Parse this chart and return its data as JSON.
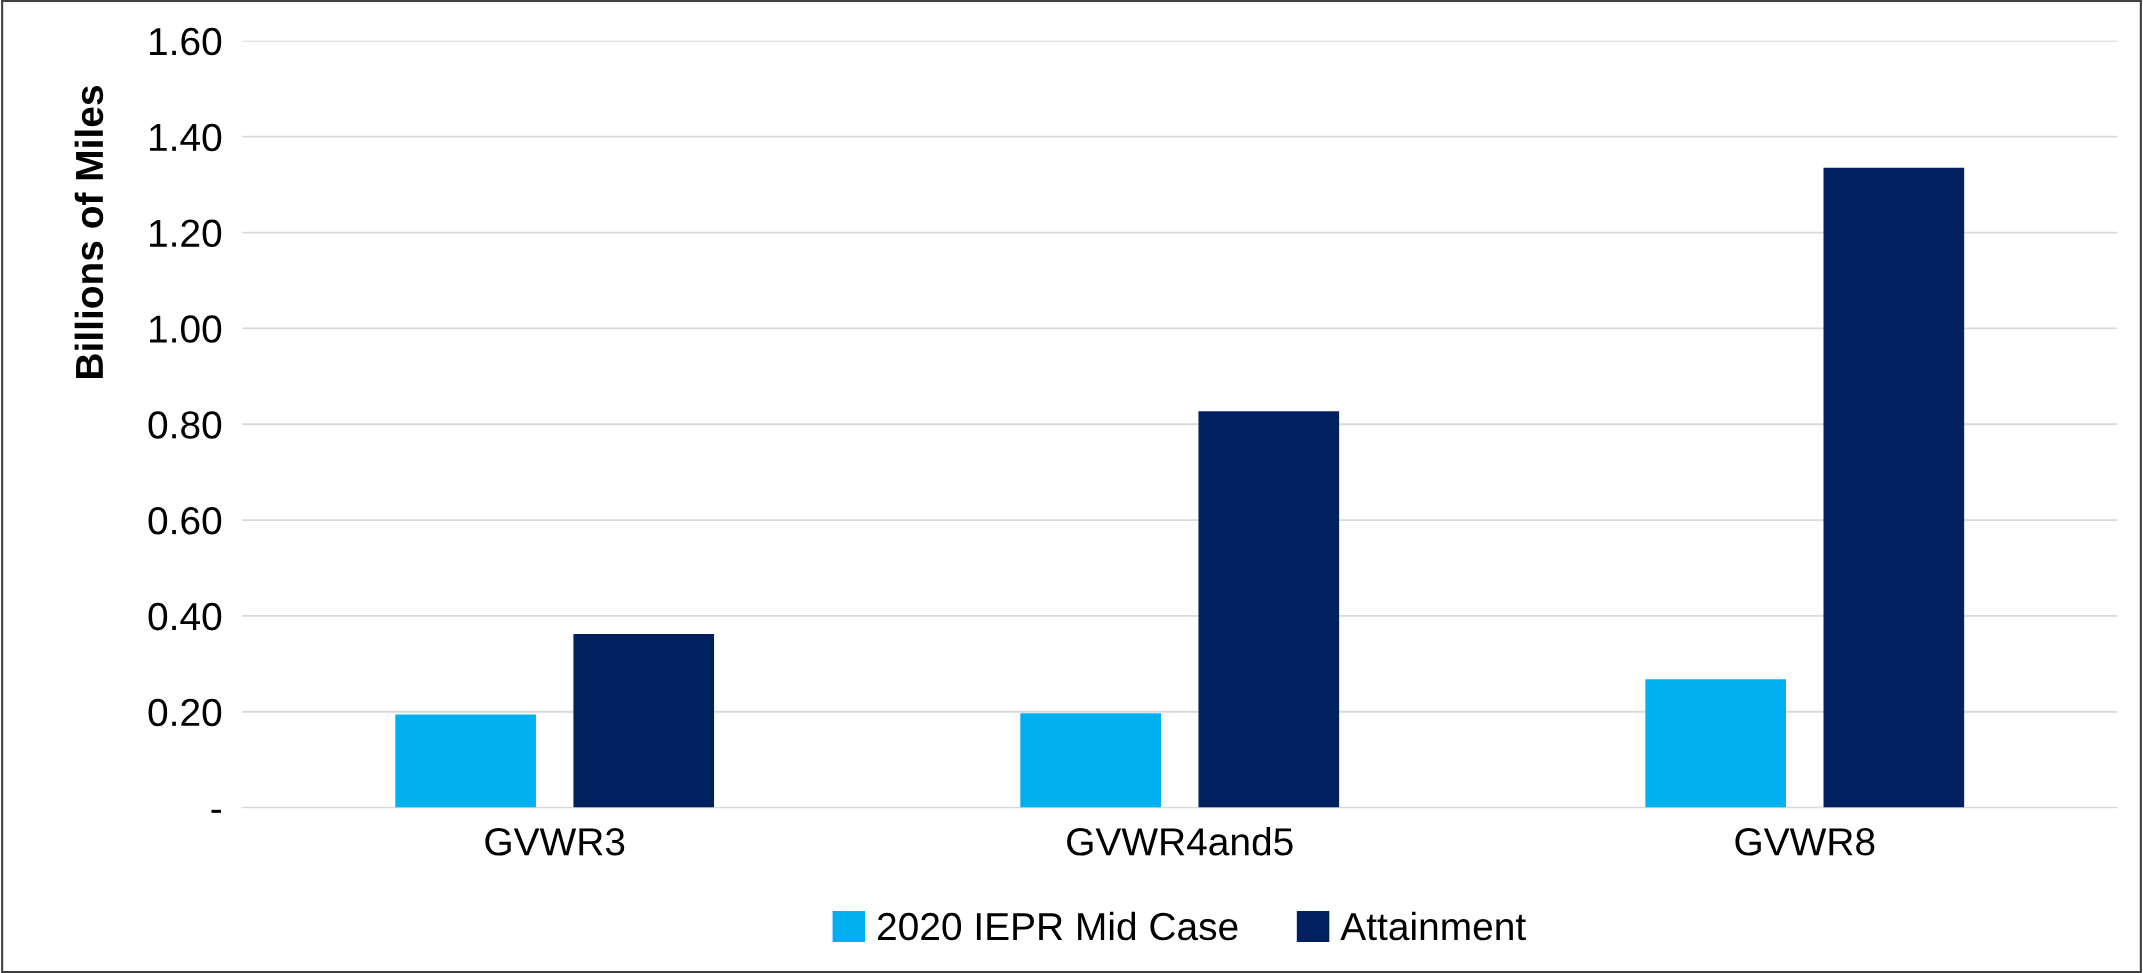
{
  "chart_data": {
    "type": "bar",
    "ylabel": "Billions of Miles",
    "categories": [
      "GVWR3",
      "GVWR4and5",
      "GVWR8"
    ],
    "series": [
      {
        "name": "2020 IEPR Mid Case",
        "color": "#00b0f0",
        "values": [
          0.194,
          0.197,
          0.268
        ]
      },
      {
        "name": "Attainment",
        "color": "#002060",
        "values": [
          0.362,
          0.827,
          1.335
        ]
      }
    ],
    "ylim": [
      0,
      1.6
    ],
    "yticks": [
      {
        "value": 0,
        "label": "-"
      },
      {
        "value": 0.2,
        "label": "0.20"
      },
      {
        "value": 0.4,
        "label": "0.40"
      },
      {
        "value": 0.6,
        "label": "0.60"
      },
      {
        "value": 0.8,
        "label": "0.80"
      },
      {
        "value": 1.0,
        "label": "1.00"
      },
      {
        "value": 1.2,
        "label": "1.20"
      },
      {
        "value": 1.4,
        "label": "1.40"
      },
      {
        "value": 1.6,
        "label": "1.60"
      }
    ],
    "grid": "y",
    "legend": "bottom"
  }
}
